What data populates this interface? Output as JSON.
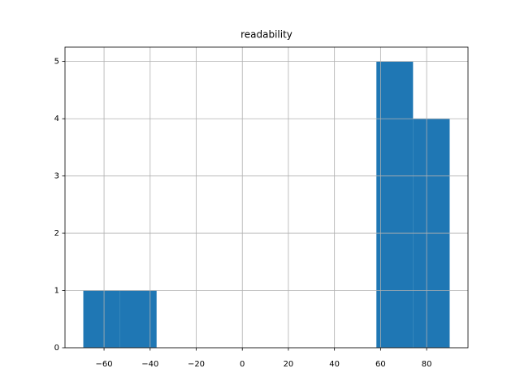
{
  "chart_data": {
    "type": "histogram",
    "title": "readability",
    "bins": [
      -69,
      -53.1,
      -37.2,
      -21.3,
      -5.4,
      10.5,
      26.4,
      42.3,
      58.2,
      74.1,
      90
    ],
    "values": [
      1,
      1,
      0,
      0,
      0,
      0,
      0,
      0,
      5,
      4
    ],
    "color": "#1f77b4",
    "xlim": [
      -76.95,
      97.95
    ],
    "xticks": [
      {
        "value": -60,
        "label": "−60"
      },
      {
        "value": -40,
        "label": "−40"
      },
      {
        "value": -20,
        "label": "−20"
      },
      0,
      20,
      40,
      60,
      80
    ],
    "ylim": [
      0,
      5.25
    ],
    "yticks": [
      0,
      1,
      2,
      3,
      4,
      5
    ],
    "grid": true
  }
}
